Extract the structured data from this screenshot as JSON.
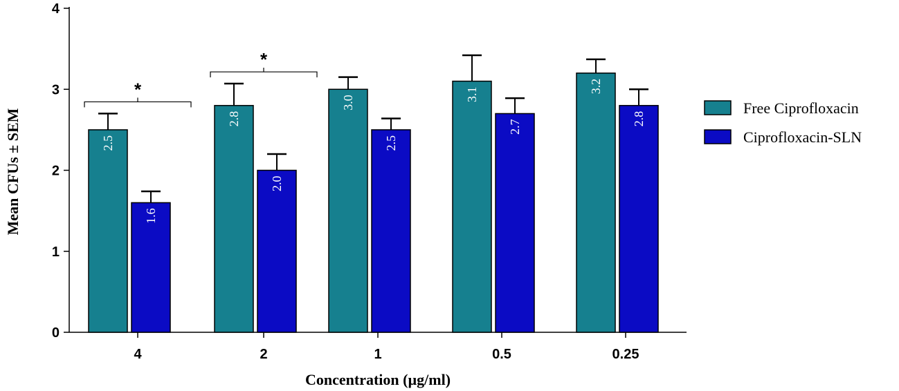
{
  "chart_data": {
    "type": "bar",
    "title": "",
    "xlabel": "Concentration (µg/ml)",
    "ylabel": "Mean CFUs ± SEM",
    "ylim": [
      0,
      4
    ],
    "yticks": [
      "0",
      "1",
      "2",
      "3",
      "4"
    ],
    "categories": [
      "4",
      "2",
      "1",
      "0.5",
      "0.25"
    ],
    "series": [
      {
        "name": "Free Ciprofloxacin",
        "color": "#16808f",
        "values": [
          2.5,
          2.8,
          3.0,
          3.1,
          3.2
        ],
        "errors": [
          0.2,
          0.27,
          0.15,
          0.32,
          0.17
        ],
        "labels": [
          "2.5",
          "2.8",
          "3.0",
          "3.1",
          "3.2"
        ]
      },
      {
        "name": "Ciprofloxacin-SLN",
        "color": "#0b0bc4",
        "values": [
          1.6,
          2.0,
          2.5,
          2.7,
          2.8
        ],
        "errors": [
          0.14,
          0.2,
          0.14,
          0.19,
          0.2
        ],
        "labels": [
          "1.6",
          "2.0",
          "2.5",
          "2.7",
          "2.8"
        ]
      }
    ],
    "significance": [
      {
        "category_index": 0,
        "symbol": "*"
      },
      {
        "category_index": 1,
        "symbol": "*"
      }
    ],
    "legend": {
      "position": "right"
    }
  }
}
